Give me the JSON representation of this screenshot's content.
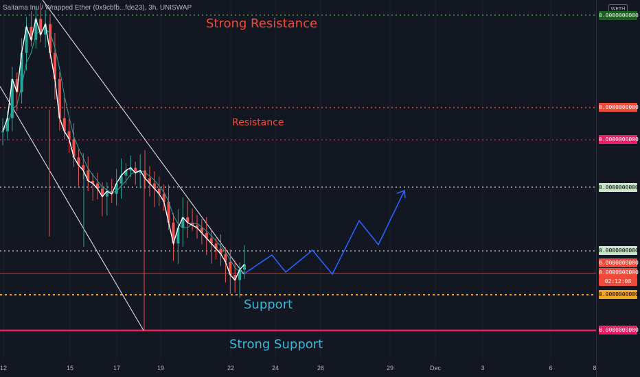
{
  "header": {
    "symbol": "Saitama Inu / Wrapped Ether (0x9cbfb...fde23), 3h, UNISWAP",
    "currency_badge": "WETH"
  },
  "annotations": {
    "strong_resistance": "Strong Resistance",
    "resistance": "Resistance",
    "support": "Support",
    "strong_support": "Strong Support"
  },
  "price_labels": [
    {
      "text": "0.0000000000",
      "bg": "#1b5e20",
      "fg": "#e8f5e9"
    },
    {
      "text": "0.0000000000",
      "bg": "#ef4a3a",
      "fg": "#ffffff"
    },
    {
      "text": "0.0000000000",
      "bg": "#e91e63",
      "fg": "#ffffff"
    },
    {
      "text": "0.0000000000",
      "bg": "#c8e6c9",
      "fg": "#000000"
    },
    {
      "text": "0.0000000000",
      "bg": "#c8e6c9",
      "fg": "#000000"
    },
    {
      "text": "0.0000000000",
      "bg": "#ef4a3a",
      "fg": "#ffffff"
    },
    {
      "text": "0.0000000000",
      "bg": "#ef4a3a",
      "fg": "#ffffff"
    },
    {
      "text": "02:12:08",
      "bg": "#ef4a3a",
      "fg": "#ffffff"
    },
    {
      "text": "0.0000000000",
      "bg": "#f5a623",
      "fg": "#000000"
    },
    {
      "text": "0.0000000000",
      "bg": "#e91e63",
      "fg": "#ffffff"
    }
  ],
  "colors": {
    "background": "#131722",
    "up": "#26a69a",
    "down": "#ef5350",
    "channel": "#d1d4dc",
    "projection": "#2962ff",
    "strong_resistance_line": "#4caf50",
    "resistance_line": "#ef4a3a",
    "resistance2_line": "#e91e63",
    "neutral_line": "#d1d4dc",
    "current_price_line": "#ef4a3a",
    "support_line": "#f5a623",
    "strong_support_line": "#e91e63"
  },
  "chart_data": {
    "type": "candlestick",
    "pair": "Saitama Inu / Wrapped Ether",
    "interval": "3h",
    "exchange": "UNISWAP",
    "x_ticks": [
      "12",
      "15",
      "17",
      "19",
      "22",
      "24",
      "26",
      "29",
      "Dec",
      "3",
      "6",
      "8"
    ],
    "levels": [
      {
        "name": "Strong Resistance",
        "style": "dotted"
      },
      {
        "name": "Resistance",
        "style": "dotted"
      },
      {
        "name": "Resistance",
        "style": "dotted"
      },
      {
        "name": "",
        "style": "dotted"
      },
      {
        "name": "",
        "style": "dotted"
      },
      {
        "name": "",
        "style": "solid"
      },
      {
        "name": "Support",
        "style": "dotted"
      },
      {
        "name": "Strong Support",
        "style": "solid"
      }
    ],
    "price_approx_series": [
      0.55,
      0.6,
      0.75,
      0.7,
      0.85,
      0.95,
      0.9,
      0.98,
      0.92,
      0.96,
      0.85,
      0.75,
      0.6,
      0.55,
      0.52,
      0.45,
      0.42,
      0.4,
      0.36,
      0.35,
      0.33,
      0.3,
      0.32,
      0.31,
      0.35,
      0.38,
      0.4,
      0.41,
      0.39,
      0.4,
      0.37,
      0.35,
      0.33,
      0.31,
      0.28,
      0.2,
      0.12,
      0.18,
      0.22,
      0.2,
      0.19,
      0.18,
      0.16,
      0.14,
      0.12,
      0.1,
      0.08,
      0.05,
      0.0,
      -0.02,
      0.02,
      0.04
    ],
    "projection_path": [
      "up",
      "down",
      "up",
      "down",
      "up",
      "down",
      "up"
    ]
  }
}
